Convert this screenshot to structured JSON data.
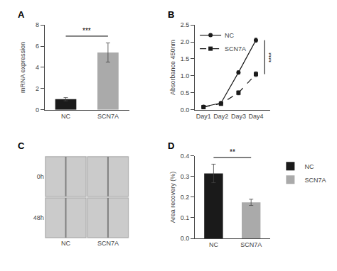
{
  "chart_data": [
    {
      "type": "bar",
      "title": "A",
      "categories": [
        "NC",
        "SCN7A"
      ],
      "values": [
        1.0,
        5.4
      ],
      "errors": [
        0.15,
        0.9
      ],
      "colors": [
        "#1a1a1a",
        "#aaaaaa"
      ],
      "ylabel": "mRNA expression",
      "ylim": [
        0,
        8
      ],
      "yticks": [
        0,
        2,
        4,
        6,
        8
      ],
      "annotations": [
        "***"
      ],
      "grid": false
    },
    {
      "type": "line",
      "title": "B",
      "categories": [
        "Day1",
        "Day2",
        "Day3",
        "Day4"
      ],
      "series": [
        {
          "name": "NC",
          "color": "#1a1a1a",
          "marker": "circle",
          "line_style": "solid",
          "values": [
            0.09,
            0.2,
            1.1,
            2.05
          ],
          "errors": [
            0.01,
            0.03,
            0.05,
            0.06
          ]
        },
        {
          "name": "SCN7A",
          "color": "#1a1a1a",
          "marker": "square",
          "line_style": "dashed",
          "values": [
            0.08,
            0.18,
            0.5,
            1.05
          ],
          "errors": [
            0.01,
            0.04,
            0.06,
            0.07
          ]
        }
      ],
      "ylabel": "Absorbance 450nm",
      "ylim": [
        0,
        2.5
      ],
      "yticks": [
        {
          "value": 0,
          "label": "0.0"
        },
        0.5,
        {
          "value": 1,
          "label": "1.0"
        },
        1.5,
        {
          "value": 2,
          "label": "2.0"
        },
        2.5
      ],
      "annotations": [
        "****"
      ],
      "legend": "upper left",
      "grid": false
    },
    {
      "type": "image",
      "title": "C",
      "x": [
        "NC",
        "SCN7A"
      ],
      "y": [
        "0h",
        "48h"
      ]
    },
    {
      "type": "bar",
      "title": "D",
      "categories": [
        "NC",
        "SCN7A"
      ],
      "values": [
        0.315,
        0.175
      ],
      "errors": [
        0.045,
        0.015
      ],
      "colors": [
        "#1a1a1a",
        "#aaaaaa"
      ],
      "ylabel": "Area recovery (%)",
      "ylim": [
        0,
        0.4
      ],
      "yticks": [
        {
          "value": 0,
          "label": "0.0"
        },
        0.1,
        0.2,
        0.3,
        0.4
      ],
      "annotations": [
        "**"
      ],
      "legend": "upper right",
      "grid": false
    }
  ]
}
